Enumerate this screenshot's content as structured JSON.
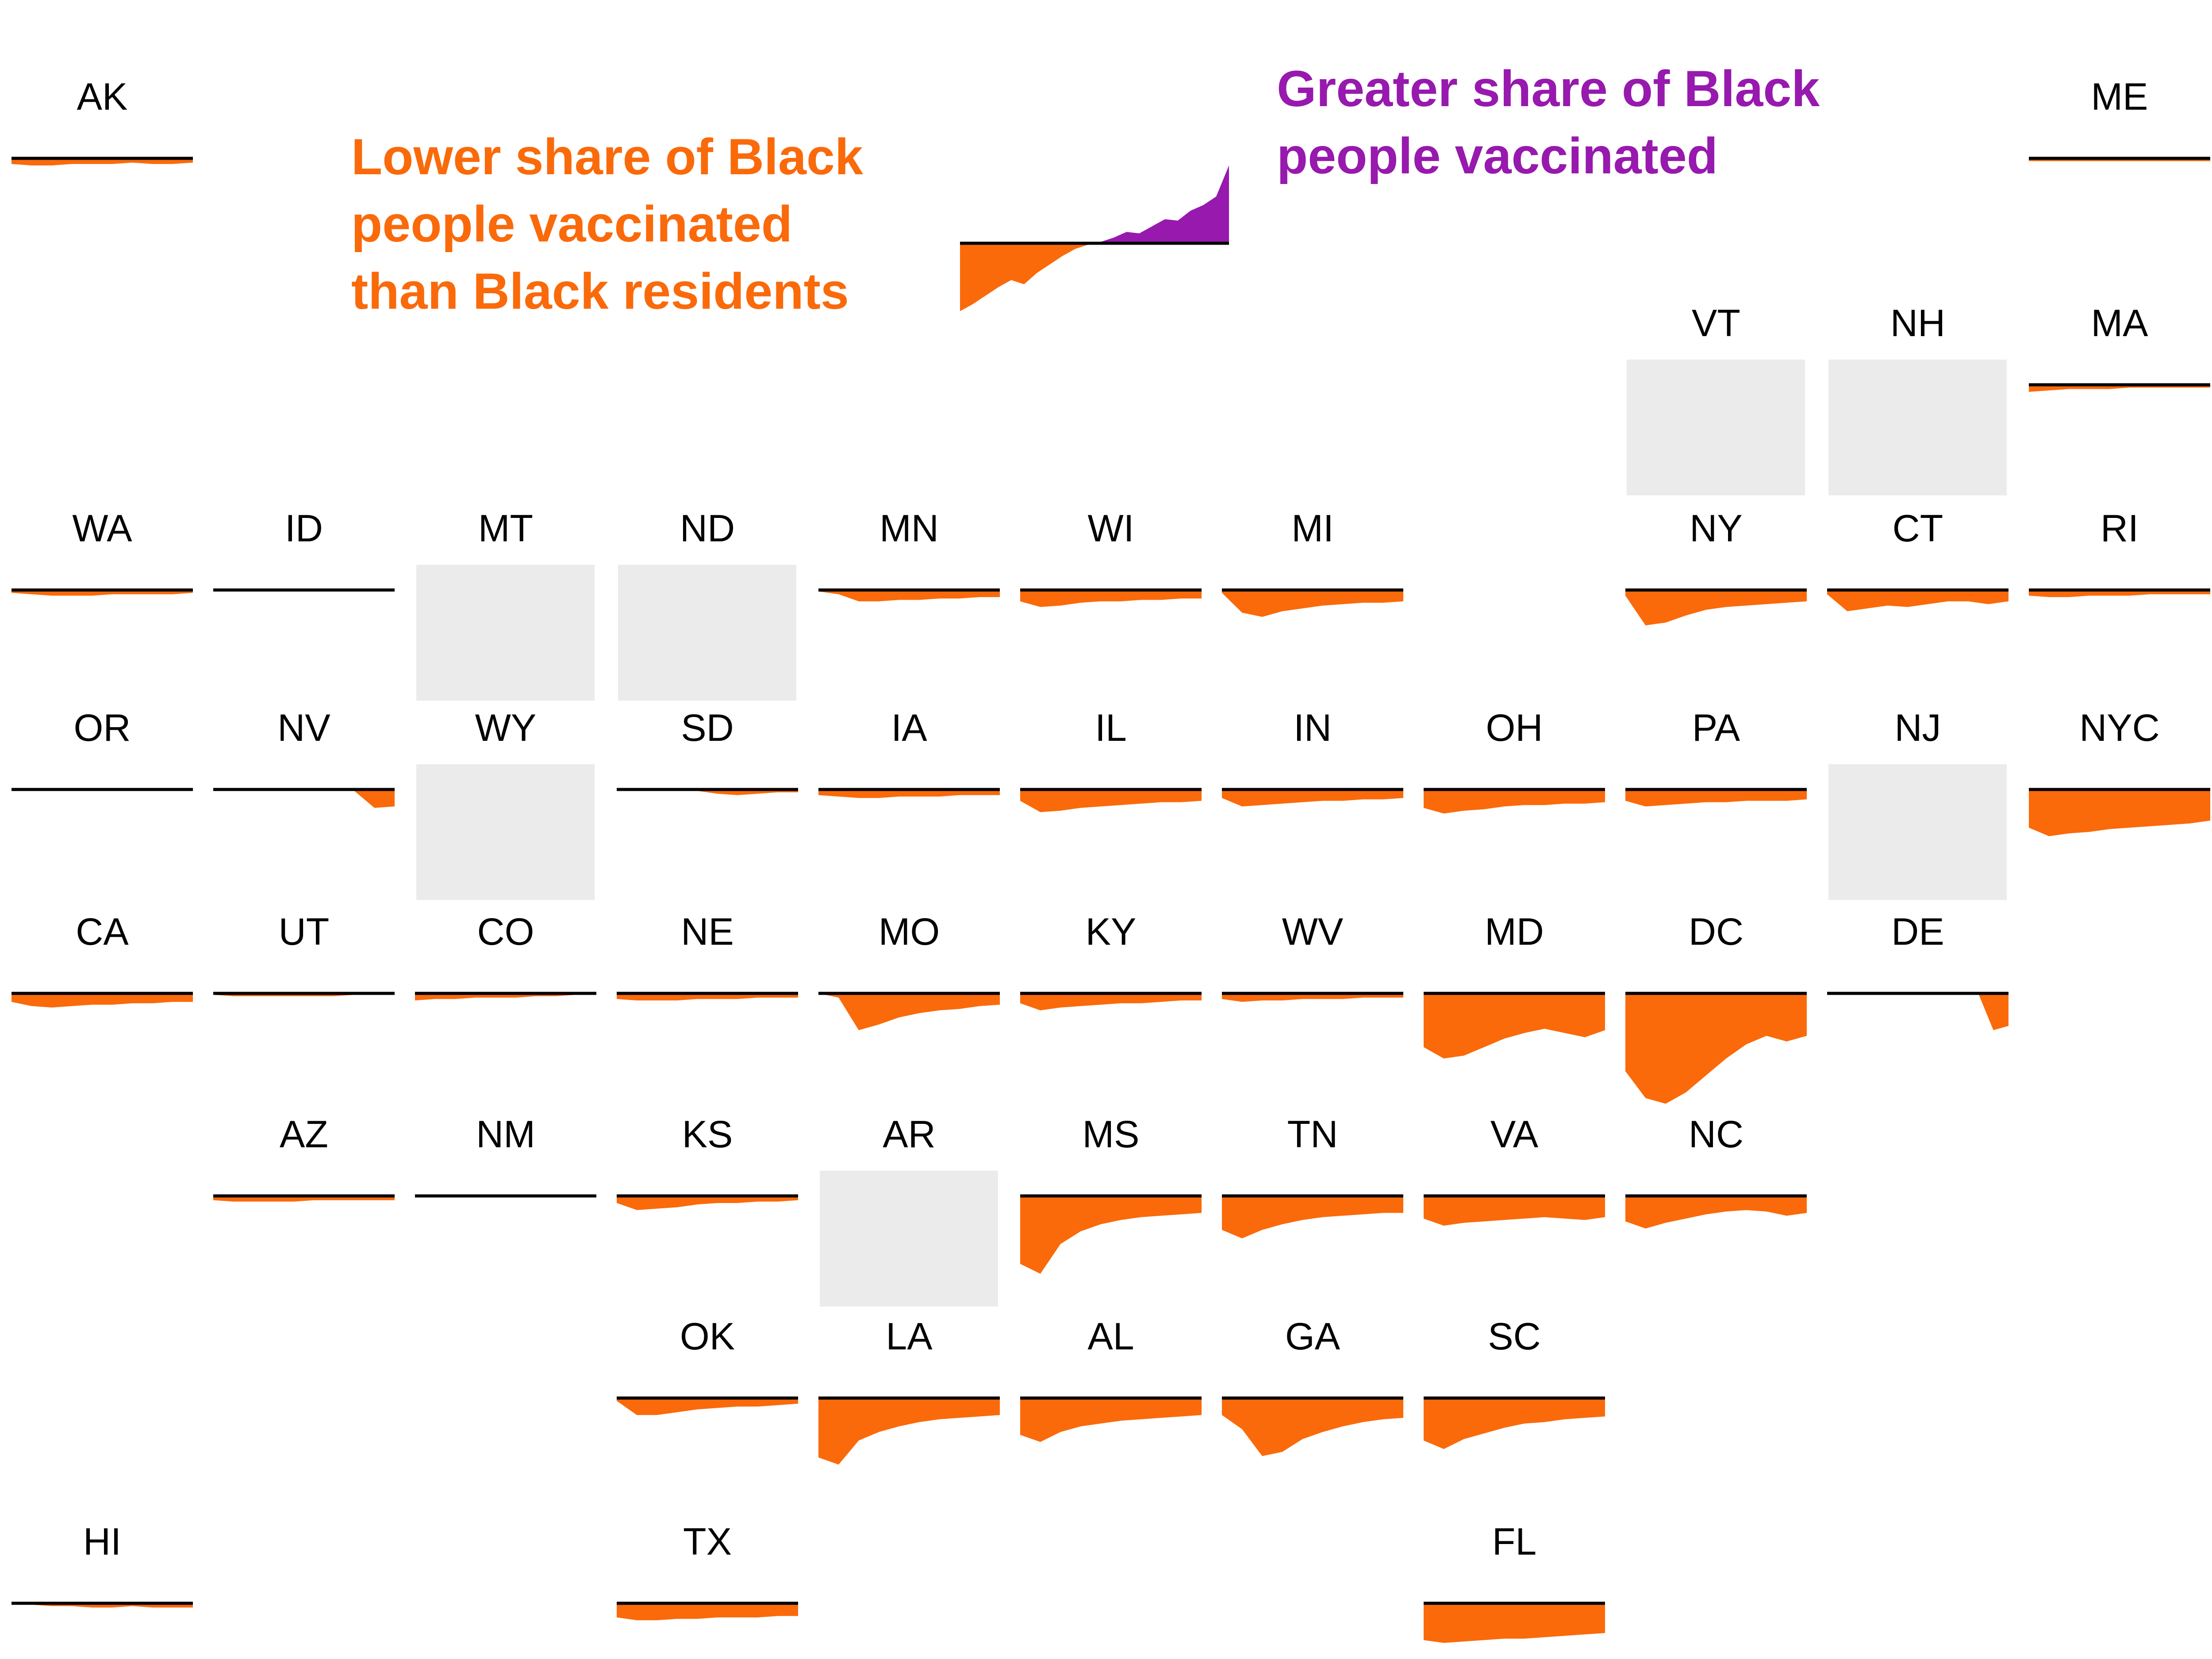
{
  "page": {
    "background": "#FFFFFF"
  },
  "legend": {
    "lower_lines": [
      "Lower share of Black",
      "people vaccinated",
      "than Black residents"
    ],
    "greater_lines": [
      "Greater share of Black",
      "people vaccinated"
    ]
  },
  "chart_data": {
    "type": "area",
    "layout": "US state tile-grid of small-multiple area sparklines, 11 columns x 8 rows",
    "title": "",
    "units": "approximate gap in percentage points over time (chart shows no axis labels); negative = lower share of Black people vaccinated than Black residents, positive = greater share vaccinated",
    "colors": {
      "deficit_orange": "#FA6A0A",
      "surplus_purple": "#9719AE",
      "no_data_gray": "#EBEBEB",
      "baseline_black": "#000000",
      "background": "#FFFFFF"
    },
    "legend_sample_series": [
      -19.2,
      -17.2,
      -14.8,
      -12.4,
      -10.4,
      -11.6,
      -8.4,
      -6,
      -3.6,
      -1.6,
      -0.4,
      0.4,
      1.6,
      3.2,
      2.8,
      4.8,
      6.8,
      6.4,
      9.2,
      10.8,
      13.2,
      22
    ],
    "no_data_states": [
      "VT",
      "NH",
      "MT",
      "ND",
      "WY",
      "NJ",
      "AR"
    ],
    "tiles": [
      {
        "state": "AK",
        "col": 0,
        "row": 0,
        "no_data": false,
        "series": [
          -1.6,
          -2,
          -2,
          -1.6,
          -1.6,
          -1.6,
          -1.2,
          -1.6,
          -1.6,
          -1.2
        ]
      },
      {
        "state": "ME",
        "col": 10,
        "row": 0,
        "no_data": false,
        "series": [
          -0.8,
          -0.8,
          -0.8,
          -0.8,
          -0.8,
          -0.8,
          -0.8,
          -0.8,
          -0.8,
          -0.8
        ]
      },
      {
        "state": "VT",
        "col": 8,
        "row": 1,
        "no_data": true,
        "series": []
      },
      {
        "state": "NH",
        "col": 9,
        "row": 1,
        "no_data": true,
        "series": []
      },
      {
        "state": "MA",
        "col": 10,
        "row": 1,
        "no_data": false,
        "series": [
          -2,
          -1.6,
          -1.2,
          -1.2,
          -1.2,
          -0.8,
          -0.8,
          -0.8,
          -0.8,
          -0.8
        ]
      },
      {
        "state": "WA",
        "col": 0,
        "row": 2,
        "no_data": false,
        "series": [
          -0.8,
          -1.2,
          -1.6,
          -1.6,
          -1.6,
          -1.2,
          -1.2,
          -1.2,
          -1.2,
          -0.8
        ]
      },
      {
        "state": "ID",
        "col": 1,
        "row": 2,
        "no_data": false,
        "series": [
          0,
          0,
          0,
          0,
          0,
          0,
          0,
          0,
          0,
          0
        ]
      },
      {
        "state": "MT",
        "col": 2,
        "row": 2,
        "no_data": true,
        "series": []
      },
      {
        "state": "ND",
        "col": 3,
        "row": 2,
        "no_data": true,
        "series": []
      },
      {
        "state": "MN",
        "col": 4,
        "row": 2,
        "no_data": false,
        "series": [
          -0.4,
          -1.2,
          -3.2,
          -3.2,
          -2.8,
          -2.8,
          -2.4,
          -2.4,
          -2,
          -2
        ]
      },
      {
        "state": "WI",
        "col": 5,
        "row": 2,
        "no_data": false,
        "series": [
          -3.2,
          -4.8,
          -4.4,
          -3.6,
          -3.2,
          -3.2,
          -2.8,
          -2.8,
          -2.4,
          -2.4
        ]
      },
      {
        "state": "MI",
        "col": 6,
        "row": 2,
        "no_data": false,
        "series": [
          -0.8,
          -6.4,
          -7.6,
          -6,
          -5.2,
          -4.4,
          -4,
          -3.6,
          -3.6,
          -3.2
        ]
      },
      {
        "state": "NY",
        "col": 8,
        "row": 2,
        "no_data": false,
        "series": [
          -1.6,
          -10,
          -9.2,
          -7.2,
          -5.6,
          -4.8,
          -4.4,
          -4,
          -3.6,
          -3.2
        ]
      },
      {
        "state": "CT",
        "col": 9,
        "row": 2,
        "no_data": false,
        "series": [
          -1.2,
          -6,
          -5.2,
          -4.4,
          -4.8,
          -4,
          -3.2,
          -3.2,
          -4,
          -3.2
        ]
      },
      {
        "state": "RI",
        "col": 10,
        "row": 2,
        "no_data": false,
        "series": [
          -1.6,
          -2,
          -2,
          -1.6,
          -1.6,
          -1.6,
          -1.2,
          -1.2,
          -1.2,
          -1.2
        ]
      },
      {
        "state": "OR",
        "col": 0,
        "row": 3,
        "no_data": false,
        "series": [
          0,
          0,
          0,
          0,
          0,
          0,
          0,
          0,
          0,
          0
        ]
      },
      {
        "state": "NV",
        "col": 1,
        "row": 3,
        "no_data": false,
        "series": [
          0,
          0,
          0,
          0,
          0,
          0,
          0,
          -0.4,
          -5.2,
          -4.8
        ]
      },
      {
        "state": "WY",
        "col": 2,
        "row": 3,
        "no_data": true,
        "series": []
      },
      {
        "state": "SD",
        "col": 3,
        "row": 3,
        "no_data": false,
        "series": [
          0,
          0,
          0,
          0,
          -0.4,
          -1.2,
          -1.6,
          -1.2,
          -0.8,
          -0.8
        ]
      },
      {
        "state": "IA",
        "col": 4,
        "row": 3,
        "no_data": false,
        "series": [
          -1.6,
          -2,
          -2.4,
          -2.4,
          -2,
          -2,
          -2,
          -1.6,
          -1.6,
          -1.6
        ]
      },
      {
        "state": "IL",
        "col": 5,
        "row": 3,
        "no_data": false,
        "series": [
          -3.2,
          -6.4,
          -6,
          -5.2,
          -4.8,
          -4.4,
          -4,
          -3.6,
          -3.6,
          -3.2
        ]
      },
      {
        "state": "IN",
        "col": 6,
        "row": 3,
        "no_data": false,
        "series": [
          -2.4,
          -4.8,
          -4.4,
          -4,
          -3.6,
          -3.2,
          -3.2,
          -2.8,
          -2.8,
          -2.4
        ]
      },
      {
        "state": "OH",
        "col": 7,
        "row": 3,
        "no_data": false,
        "series": [
          -5.2,
          -6.8,
          -6,
          -5.6,
          -4.8,
          -4.4,
          -4.4,
          -4,
          -4,
          -3.6
        ]
      },
      {
        "state": "PA",
        "col": 8,
        "row": 3,
        "no_data": false,
        "series": [
          -3.2,
          -4.8,
          -4.4,
          -4,
          -3.6,
          -3.6,
          -3.2,
          -3.2,
          -3.2,
          -2.8
        ]
      },
      {
        "state": "NJ",
        "col": 9,
        "row": 3,
        "no_data": true,
        "series": []
      },
      {
        "state": "NYC",
        "col": 10,
        "row": 3,
        "no_data": false,
        "series": [
          -10.8,
          -13.2,
          -12.4,
          -12,
          -11.2,
          -10.8,
          -10.4,
          -10,
          -9.6,
          -8.8
        ]
      },
      {
        "state": "CA",
        "col": 0,
        "row": 4,
        "no_data": false,
        "series": [
          -2.4,
          -3.6,
          -4,
          -3.6,
          -3.2,
          -3.2,
          -2.8,
          -2.8,
          -2.4,
          -2.4
        ]
      },
      {
        "state": "UT",
        "col": 1,
        "row": 4,
        "no_data": false,
        "series": [
          -0.4,
          -0.8,
          -0.8,
          -0.8,
          -0.8,
          -0.8,
          -0.8,
          -0.4,
          -0.4,
          -0.4
        ]
      },
      {
        "state": "CO",
        "col": 2,
        "row": 4,
        "no_data": false,
        "series": [
          -2,
          -1.6,
          -1.6,
          -1.2,
          -1.2,
          -1.2,
          -0.8,
          -0.8,
          -0.4,
          -0.4
        ]
      },
      {
        "state": "NE",
        "col": 3,
        "row": 4,
        "no_data": false,
        "series": [
          -1.6,
          -2,
          -2,
          -2,
          -1.6,
          -1.6,
          -1.6,
          -1.2,
          -1.2,
          -1.2
        ]
      },
      {
        "state": "MO",
        "col": 4,
        "row": 4,
        "no_data": false,
        "series": [
          0,
          -1.2,
          -10.4,
          -8.8,
          -6.8,
          -5.6,
          -4.8,
          -4.4,
          -3.6,
          -3.2
        ]
      },
      {
        "state": "KY",
        "col": 5,
        "row": 4,
        "no_data": false,
        "series": [
          -2.8,
          -4.8,
          -4,
          -3.6,
          -3.2,
          -2.8,
          -2.8,
          -2.4,
          -2,
          -2
        ]
      },
      {
        "state": "WV",
        "col": 6,
        "row": 4,
        "no_data": false,
        "series": [
          -1.6,
          -2.4,
          -2,
          -2,
          -1.6,
          -1.6,
          -1.6,
          -1.2,
          -1.2,
          -1.2
        ]
      },
      {
        "state": "MD",
        "col": 7,
        "row": 4,
        "no_data": false,
        "series": [
          -15.2,
          -18.4,
          -17.6,
          -15.2,
          -12.8,
          -11.2,
          -10,
          -11.2,
          -12.4,
          -10.4
        ]
      },
      {
        "state": "DC",
        "col": 8,
        "row": 4,
        "no_data": false,
        "series": [
          -22,
          -29.6,
          -31.2,
          -28,
          -23.2,
          -18.4,
          -14.4,
          -12,
          -13.6,
          -12
        ]
      },
      {
        "state": "DE",
        "col": 9,
        "row": 4,
        "no_data": false,
        "series": [
          0,
          0,
          0,
          0,
          0,
          0,
          0,
          0,
          0,
          0,
          0,
          -10.4,
          -9.2
        ]
      },
      {
        "state": "AZ",
        "col": 1,
        "row": 5,
        "no_data": false,
        "series": [
          -1.2,
          -1.6,
          -1.6,
          -1.6,
          -1.6,
          -1.2,
          -1.2,
          -1.2,
          -1.2,
          -1.2
        ]
      },
      {
        "state": "NM",
        "col": 2,
        "row": 5,
        "no_data": false,
        "series": [
          0,
          0,
          0,
          0,
          0,
          0,
          0,
          0,
          0,
          0
        ]
      },
      {
        "state": "KS",
        "col": 3,
        "row": 5,
        "no_data": false,
        "series": [
          -2,
          -4,
          -3.6,
          -3.2,
          -2.4,
          -2,
          -2,
          -1.6,
          -1.6,
          -1.2
        ]
      },
      {
        "state": "AR",
        "col": 4,
        "row": 5,
        "no_data": true,
        "series": []
      },
      {
        "state": "MS",
        "col": 5,
        "row": 5,
        "no_data": false,
        "series": [
          -19.2,
          -22,
          -13.6,
          -10,
          -8,
          -6.8,
          -6,
          -5.6,
          -5.2,
          -4.8
        ]
      },
      {
        "state": "TN",
        "col": 6,
        "row": 5,
        "no_data": false,
        "series": [
          -9.6,
          -12,
          -9.6,
          -8,
          -6.8,
          -6,
          -5.6,
          -5.2,
          -4.8,
          -4.8
        ]
      },
      {
        "state": "VA",
        "col": 7,
        "row": 5,
        "no_data": false,
        "series": [
          -6.4,
          -8.4,
          -7.6,
          -7.2,
          -6.8,
          -6.4,
          -6,
          -6.4,
          -6.8,
          -6
        ]
      },
      {
        "state": "NC",
        "col": 8,
        "row": 5,
        "no_data": false,
        "series": [
          -7.2,
          -9.2,
          -7.6,
          -6.4,
          -5.2,
          -4.4,
          -4,
          -4.4,
          -5.6,
          -4.8
        ]
      },
      {
        "state": "OK",
        "col": 3,
        "row": 6,
        "no_data": false,
        "series": [
          -0.8,
          -4.8,
          -4.8,
          -4,
          -3.2,
          -2.8,
          -2.4,
          -2.4,
          -2,
          -1.6
        ]
      },
      {
        "state": "LA",
        "col": 4,
        "row": 6,
        "no_data": false,
        "series": [
          -16.8,
          -18.8,
          -12,
          -9.6,
          -8,
          -6.8,
          -6,
          -5.6,
          -5.2,
          -4.8
        ]
      },
      {
        "state": "AL",
        "col": 5,
        "row": 6,
        "no_data": false,
        "series": [
          -10.4,
          -12.4,
          -9.6,
          -8,
          -7.2,
          -6.4,
          -6,
          -5.6,
          -5.2,
          -4.8
        ]
      },
      {
        "state": "GA",
        "col": 6,
        "row": 6,
        "no_data": false,
        "series": [
          -4.8,
          -8.8,
          -16.4,
          -15.2,
          -11.6,
          -9.6,
          -8,
          -6.8,
          -6,
          -5.6
        ]
      },
      {
        "state": "SC",
        "col": 7,
        "row": 6,
        "no_data": false,
        "series": [
          -12,
          -14.4,
          -11.6,
          -10,
          -8.4,
          -7.2,
          -6.8,
          -6,
          -5.6,
          -5.2
        ]
      },
      {
        "state": "HI",
        "col": 0,
        "row": 7,
        "no_data": false,
        "series": [
          -0.4,
          -0.4,
          -0.8,
          -0.8,
          -1.2,
          -1.2,
          -0.8,
          -1.2,
          -1.2,
          -1.2
        ]
      },
      {
        "state": "TX",
        "col": 3,
        "row": 7,
        "no_data": false,
        "series": [
          -4,
          -4.8,
          -4.8,
          -4.4,
          -4.4,
          -4,
          -4,
          -4,
          -3.6,
          -3.6
        ]
      },
      {
        "state": "FL",
        "col": 7,
        "row": 7,
        "no_data": false,
        "series": [
          -10.4,
          -11.2,
          -10.8,
          -10.4,
          -10,
          -10,
          -9.6,
          -9.2,
          -8.8,
          -8.4
        ]
      }
    ]
  }
}
